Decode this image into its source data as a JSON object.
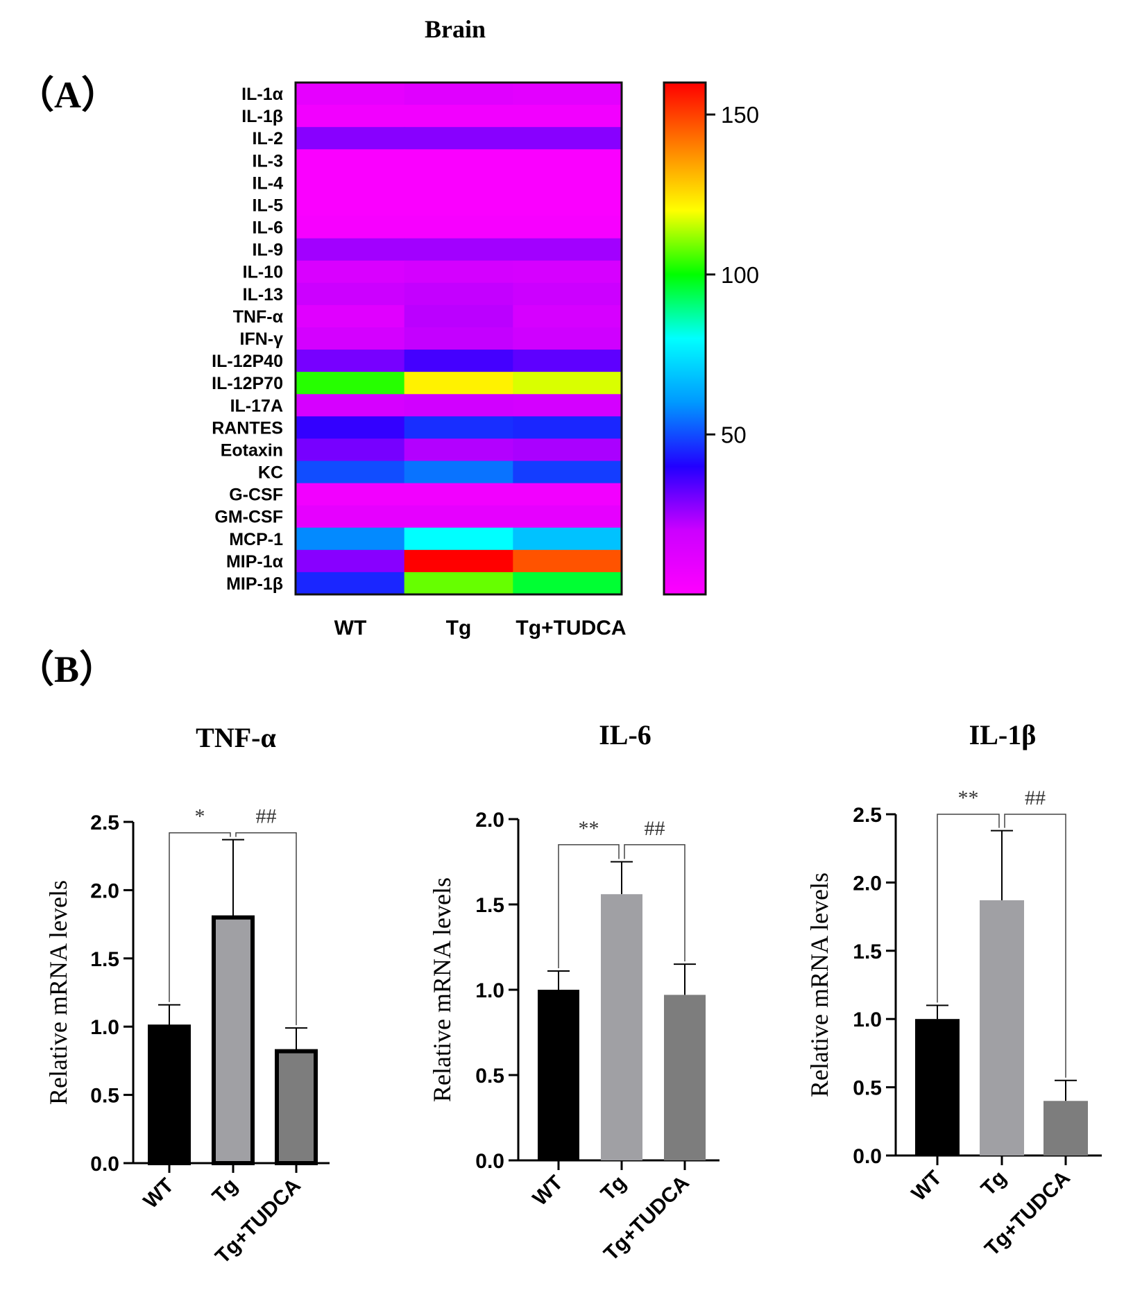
{
  "figure": {
    "panel_a_label": "（A）",
    "panel_b_label": "（B）"
  },
  "chart_data": [
    {
      "type": "heatmap",
      "title": "Brain",
      "columns": [
        "WT",
        "Tg",
        "Tg+TUDCA"
      ],
      "rows": [
        "IL-1α",
        "IL-1β",
        "IL-2",
        "IL-3",
        "IL-4",
        "IL-5",
        "IL-6",
        "IL-9",
        "IL-10",
        "IL-13",
        "TNF-α",
        "IFN-γ",
        "IL-12P40",
        "IL-12P70",
        "IL-17A",
        "RANTES",
        "Eotaxin",
        "KC",
        "G-CSF",
        "GM-CSF",
        "MCP-1",
        "MIP-1α",
        "MIP-1β"
      ],
      "values": [
        [
          10,
          12,
          11
        ],
        [
          5,
          5,
          5
        ],
        [
          28,
          28,
          28
        ],
        [
          2,
          2,
          2
        ],
        [
          2,
          2,
          2
        ],
        [
          2,
          2,
          2
        ],
        [
          3,
          3,
          3
        ],
        [
          25,
          25,
          25
        ],
        [
          15,
          17,
          16
        ],
        [
          20,
          21,
          20
        ],
        [
          12,
          22,
          16
        ],
        [
          17,
          21,
          19
        ],
        [
          30,
          36,
          33
        ],
        [
          103,
          122,
          117
        ],
        [
          16,
          18,
          17
        ],
        [
          38,
          46,
          45
        ],
        [
          30,
          23,
          24
        ],
        [
          50,
          55,
          48
        ],
        [
          5,
          5,
          5
        ],
        [
          10,
          10,
          10
        ],
        [
          58,
          80,
          68
        ],
        [
          28,
          160,
          147
        ],
        [
          45,
          108,
          96
        ]
      ],
      "colorbar": {
        "min": 0,
        "max": 160,
        "ticks": [
          50,
          100,
          150
        ],
        "colors": [
          "#ff00ff",
          "#cc00ff",
          "#2200ff",
          "#0099ff",
          "#00ffff",
          "#00ff00",
          "#ffff00",
          "#ff8000",
          "#ff0000"
        ]
      }
    },
    {
      "type": "bar",
      "title": "TNF-α",
      "ylabel": "Relative mRNA levels",
      "categories": [
        "WT",
        "Tg",
        "Tg+TUDCA"
      ],
      "values": [
        1.0,
        1.8,
        0.82
      ],
      "errors": [
        0.16,
        0.57,
        0.17
      ],
      "ylim": [
        0,
        2.5
      ],
      "ticks": [
        "0.0",
        "0.5",
        "1.0",
        "1.5",
        "2.0",
        "2.5"
      ],
      "colors": [
        "#000000",
        "#a0a0a4",
        "#7d7d7d"
      ],
      "outlined": true,
      "significance": [
        {
          "label": "*",
          "from": 0,
          "to": 1,
          "level": 2.42
        },
        {
          "label": "##",
          "from": 1,
          "to": 2,
          "level": 2.42
        }
      ]
    },
    {
      "type": "bar",
      "title": "IL-6",
      "ylabel": "Relative mRNA levels",
      "categories": [
        "WT",
        "Tg",
        "Tg+TUDCA"
      ],
      "values": [
        1.0,
        1.56,
        0.97
      ],
      "errors": [
        0.11,
        0.19,
        0.18
      ],
      "ylim": [
        0,
        2.0
      ],
      "ticks": [
        "0.0",
        "0.5",
        "1.0",
        "1.5",
        "2.0"
      ],
      "colors": [
        "#000000",
        "#a0a0a4",
        "#7d7d7d"
      ],
      "outlined": false,
      "significance": [
        {
          "label": "**",
          "from": 0,
          "to": 1,
          "level": 1.85
        },
        {
          "label": "##",
          "from": 1,
          "to": 2,
          "level": 1.85
        }
      ]
    },
    {
      "type": "bar",
      "title": "IL-1β",
      "ylabel": "Relative mRNA levels",
      "categories": [
        "WT",
        "Tg",
        "Tg+TUDCA"
      ],
      "values": [
        1.0,
        1.87,
        0.4
      ],
      "errors": [
        0.1,
        0.51,
        0.15
      ],
      "ylim": [
        0,
        2.5
      ],
      "ticks": [
        "0.0",
        "0.5",
        "1.0",
        "1.5",
        "2.0",
        "2.5"
      ],
      "colors": [
        "#000000",
        "#a0a0a4",
        "#7d7d7d"
      ],
      "outlined": false,
      "significance": [
        {
          "label": "**",
          "from": 0,
          "to": 1,
          "level": 2.5
        },
        {
          "label": "##",
          "from": 1,
          "to": 2,
          "level": 2.5
        }
      ]
    }
  ]
}
